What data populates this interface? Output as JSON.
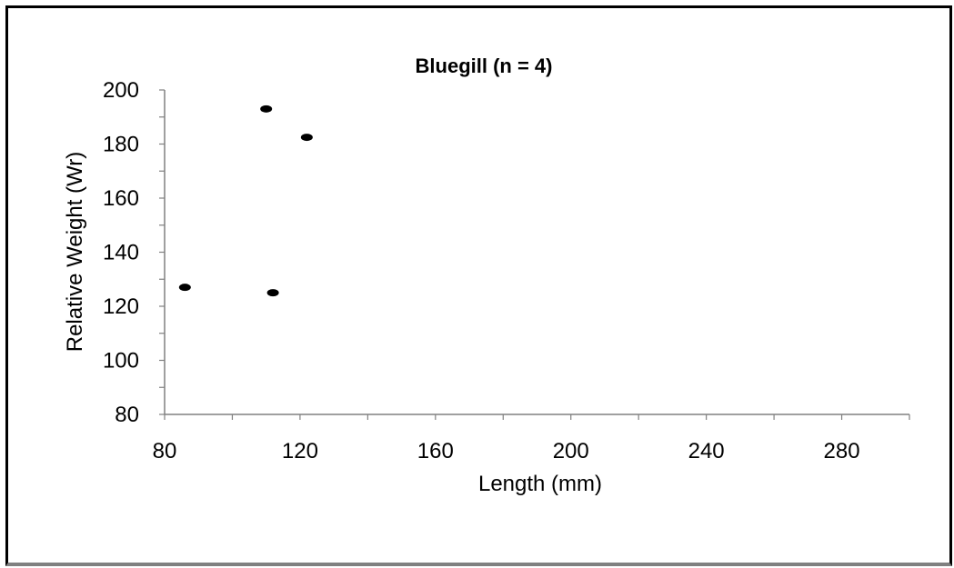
{
  "chart_data": {
    "type": "scatter",
    "title": "Bluegill (n = 4)",
    "xlabel": "Length (mm)",
    "ylabel": "Relative Weight (Wr)",
    "xlim": [
      80,
      300
    ],
    "ylim": [
      80,
      200
    ],
    "xticks": [
      80,
      120,
      160,
      200,
      240,
      280
    ],
    "yticks": [
      80,
      100,
      120,
      140,
      160,
      180,
      200
    ],
    "grid": false,
    "series": [
      {
        "marker_color": "#000000",
        "points": [
          {
            "x": 86,
            "y": 127
          },
          {
            "x": 110,
            "y": 193
          },
          {
            "x": 112,
            "y": 125
          },
          {
            "x": 122,
            "y": 182.5
          }
        ]
      }
    ]
  }
}
